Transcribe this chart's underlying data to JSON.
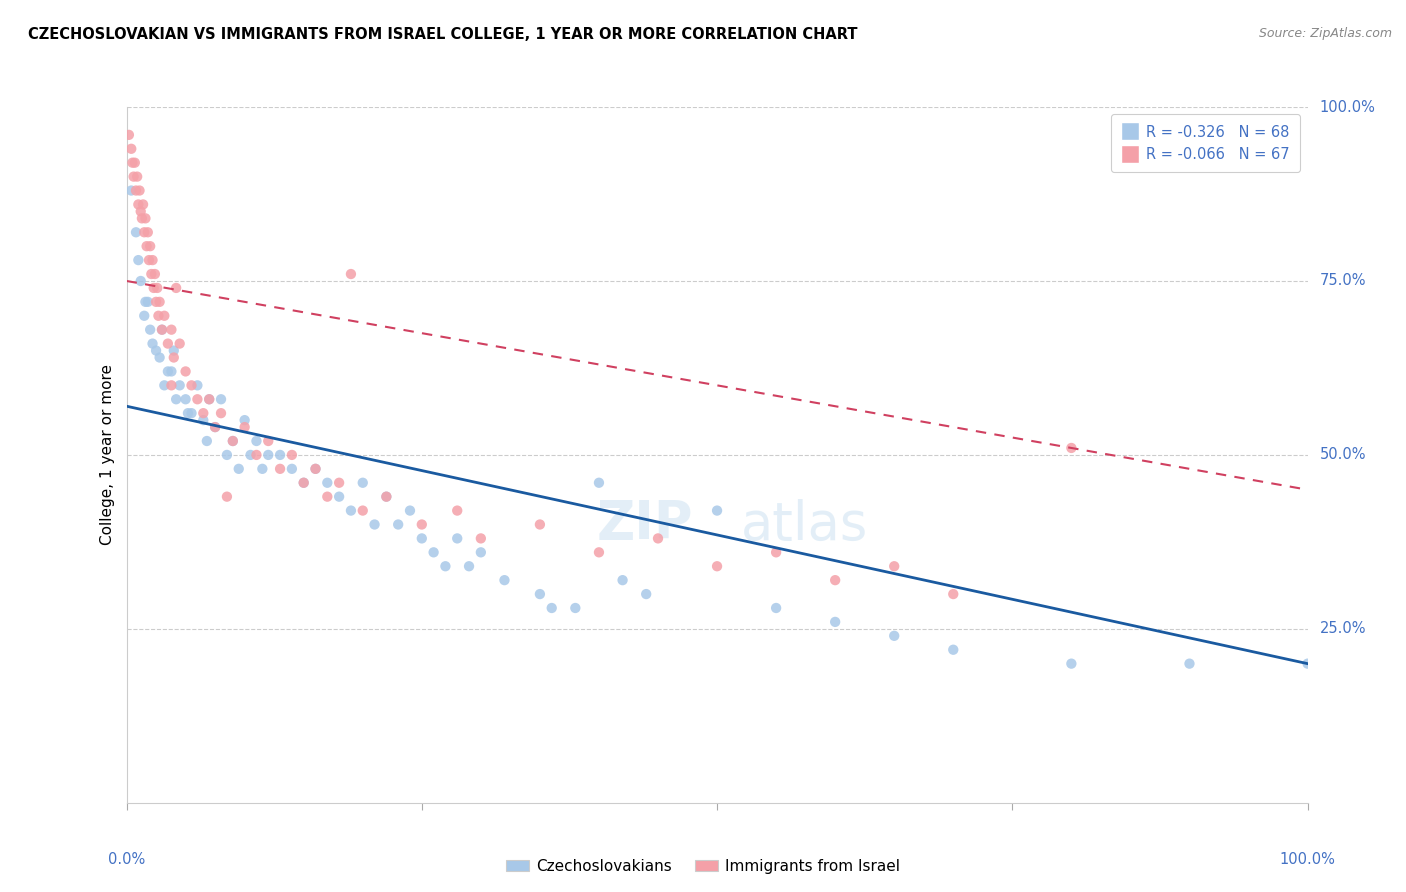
{
  "title": "CZECHOSLOVAKIAN VS IMMIGRANTS FROM ISRAEL COLLEGE, 1 YEAR OR MORE CORRELATION CHART",
  "source_text": "Source: ZipAtlas.com",
  "ylabel": "College, 1 year or more",
  "legend_blue_label": "R = -0.326   N = 68",
  "legend_pink_label": "R = -0.066   N = 67",
  "legend_bottom_blue": "Czechoslovakians",
  "legend_bottom_pink": "Immigrants from Israel",
  "blue_color": "#a8c8e8",
  "pink_color": "#f4a0a8",
  "blue_line_color": "#1a5aa0",
  "pink_line_color": "#d04060",
  "watermark_zip": "ZIP",
  "watermark_atlas": "atlas",
  "blue_scatter": [
    [
      0.4,
      88
    ],
    [
      1.0,
      78
    ],
    [
      1.6,
      72
    ],
    [
      2.0,
      68
    ],
    [
      0.8,
      82
    ],
    [
      1.2,
      75
    ],
    [
      1.5,
      70
    ],
    [
      2.5,
      65
    ],
    [
      3.0,
      68
    ],
    [
      2.2,
      66
    ],
    [
      1.8,
      72
    ],
    [
      3.5,
      62
    ],
    [
      4.0,
      65
    ],
    [
      2.8,
      64
    ],
    [
      3.2,
      60
    ],
    [
      4.5,
      60
    ],
    [
      5.0,
      58
    ],
    [
      3.8,
      62
    ],
    [
      4.2,
      58
    ],
    [
      5.5,
      56
    ],
    [
      6.0,
      60
    ],
    [
      5.2,
      56
    ],
    [
      6.5,
      55
    ],
    [
      7.0,
      58
    ],
    [
      7.5,
      54
    ],
    [
      8.0,
      58
    ],
    [
      6.8,
      52
    ],
    [
      8.5,
      50
    ],
    [
      9.0,
      52
    ],
    [
      10.0,
      55
    ],
    [
      11.0,
      52
    ],
    [
      12.0,
      50
    ],
    [
      9.5,
      48
    ],
    [
      13.0,
      50
    ],
    [
      14.0,
      48
    ],
    [
      15.0,
      46
    ],
    [
      10.5,
      50
    ],
    [
      16.0,
      48
    ],
    [
      17.0,
      46
    ],
    [
      11.5,
      48
    ],
    [
      18.0,
      44
    ],
    [
      19.0,
      42
    ],
    [
      20.0,
      46
    ],
    [
      22.0,
      44
    ],
    [
      21.0,
      40
    ],
    [
      24.0,
      42
    ],
    [
      25.0,
      38
    ],
    [
      23.0,
      40
    ],
    [
      26.0,
      36
    ],
    [
      28.0,
      38
    ],
    [
      30.0,
      36
    ],
    [
      27.0,
      34
    ],
    [
      32.0,
      32
    ],
    [
      35.0,
      30
    ],
    [
      29.0,
      34
    ],
    [
      38.0,
      28
    ],
    [
      40.0,
      46
    ],
    [
      42.0,
      32
    ],
    [
      44.0,
      30
    ],
    [
      36.0,
      28
    ],
    [
      50.0,
      42
    ],
    [
      55.0,
      28
    ],
    [
      60.0,
      26
    ],
    [
      65.0,
      24
    ],
    [
      70.0,
      22
    ],
    [
      80.0,
      20
    ],
    [
      90.0,
      20
    ],
    [
      100.0,
      20
    ]
  ],
  "pink_scatter": [
    [
      0.2,
      96
    ],
    [
      0.4,
      94
    ],
    [
      0.5,
      92
    ],
    [
      0.6,
      90
    ],
    [
      0.7,
      92
    ],
    [
      0.8,
      88
    ],
    [
      0.9,
      90
    ],
    [
      1.0,
      86
    ],
    [
      1.1,
      88
    ],
    [
      1.2,
      85
    ],
    [
      1.3,
      84
    ],
    [
      1.4,
      86
    ],
    [
      1.5,
      82
    ],
    [
      1.6,
      84
    ],
    [
      1.7,
      80
    ],
    [
      1.8,
      82
    ],
    [
      1.9,
      78
    ],
    [
      2.0,
      80
    ],
    [
      2.1,
      76
    ],
    [
      2.2,
      78
    ],
    [
      2.3,
      74
    ],
    [
      2.4,
      76
    ],
    [
      2.5,
      72
    ],
    [
      2.6,
      74
    ],
    [
      2.7,
      70
    ],
    [
      2.8,
      72
    ],
    [
      3.0,
      68
    ],
    [
      3.2,
      70
    ],
    [
      3.5,
      66
    ],
    [
      3.8,
      68
    ],
    [
      4.0,
      64
    ],
    [
      4.5,
      66
    ],
    [
      5.0,
      62
    ],
    [
      5.5,
      60
    ],
    [
      6.0,
      58
    ],
    [
      4.2,
      74
    ],
    [
      6.5,
      56
    ],
    [
      7.0,
      58
    ],
    [
      7.5,
      54
    ],
    [
      8.0,
      56
    ],
    [
      9.0,
      52
    ],
    [
      10.0,
      54
    ],
    [
      11.0,
      50
    ],
    [
      12.0,
      52
    ],
    [
      13.0,
      48
    ],
    [
      14.0,
      50
    ],
    [
      15.0,
      46
    ],
    [
      16.0,
      48
    ],
    [
      17.0,
      44
    ],
    [
      18.0,
      46
    ],
    [
      19.0,
      76
    ],
    [
      20.0,
      42
    ],
    [
      22.0,
      44
    ],
    [
      25.0,
      40
    ],
    [
      28.0,
      42
    ],
    [
      30.0,
      38
    ],
    [
      35.0,
      40
    ],
    [
      40.0,
      36
    ],
    [
      45.0,
      38
    ],
    [
      50.0,
      34
    ],
    [
      55.0,
      36
    ],
    [
      60.0,
      32
    ],
    [
      65.0,
      34
    ],
    [
      70.0,
      30
    ],
    [
      80.0,
      51
    ],
    [
      8.5,
      44
    ],
    [
      3.8,
      60
    ]
  ],
  "blue_trend_x": [
    0,
    100
  ],
  "blue_trend_y": [
    57,
    20
  ],
  "pink_trend_x": [
    0,
    100
  ],
  "pink_trend_y": [
    75,
    45
  ],
  "xlim": [
    0,
    100
  ],
  "ylim": [
    0,
    100
  ],
  "background_color": "#ffffff",
  "grid_color": "#cccccc",
  "tick_color": "#4472c4",
  "axis_label_color": "#000000"
}
